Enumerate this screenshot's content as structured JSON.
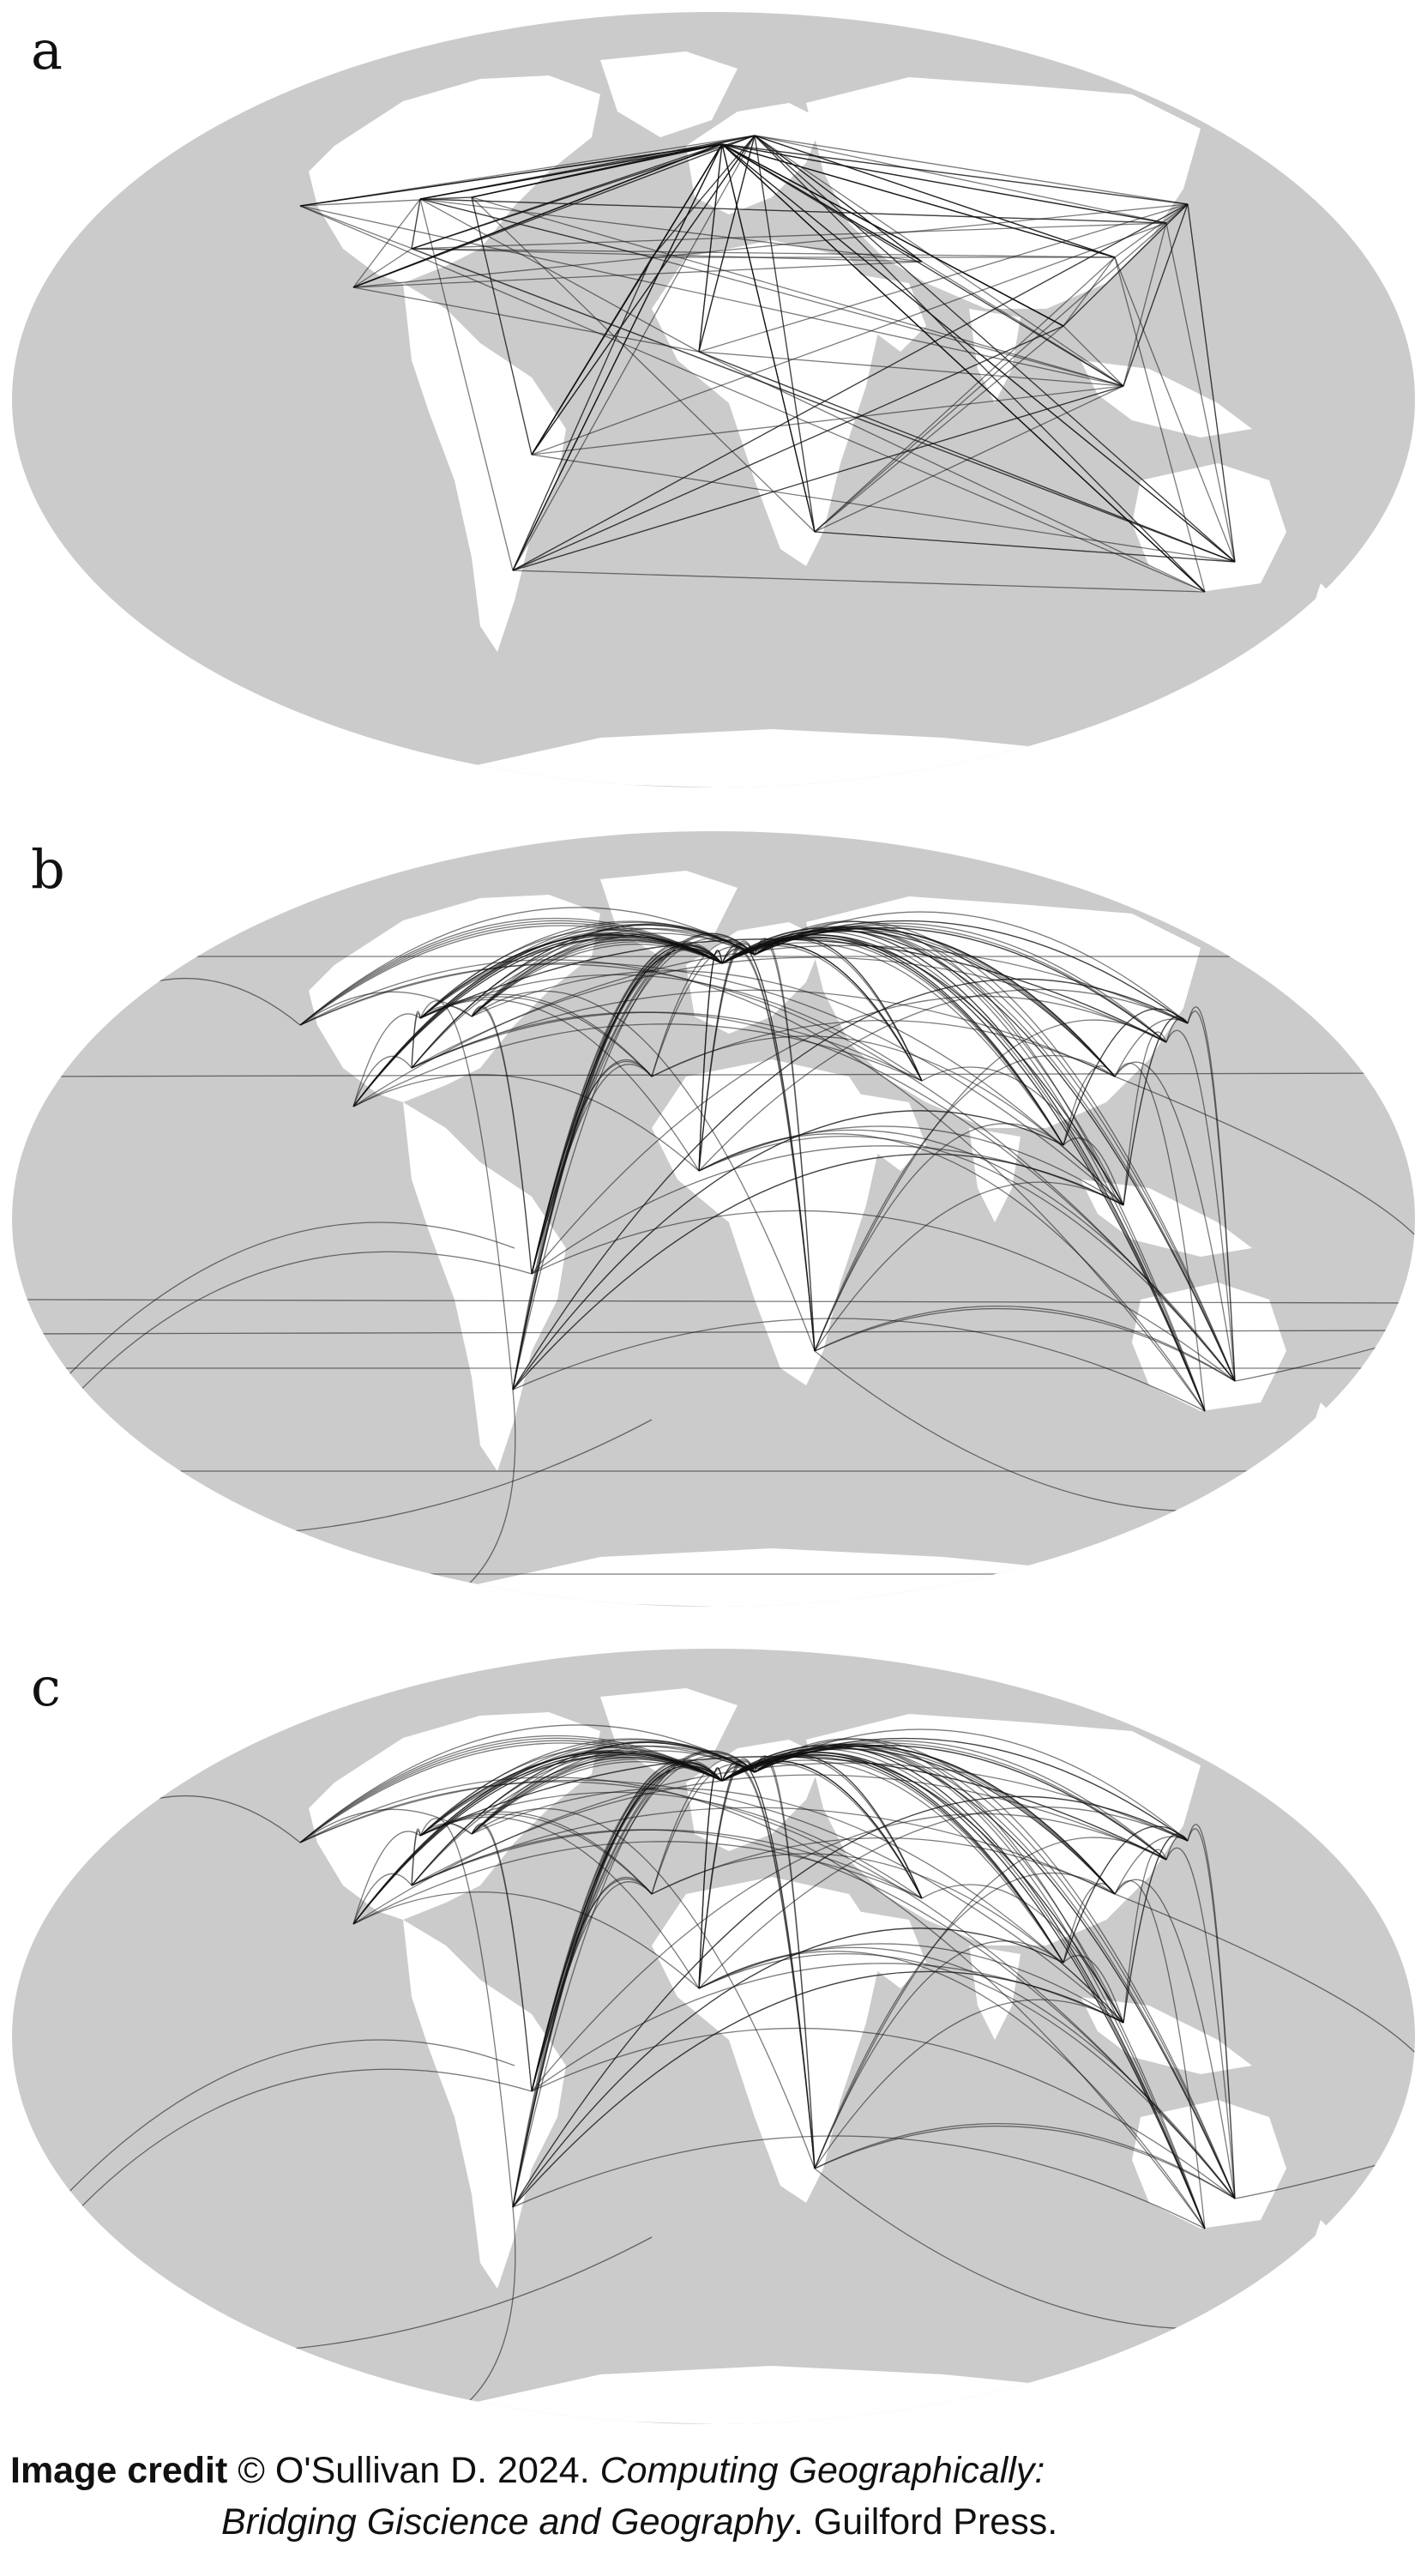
{
  "figure": {
    "panels": [
      {
        "letter": "a",
        "line_style": "straight"
      },
      {
        "letter": "b",
        "line_style": "great-circle"
      },
      {
        "letter": "c",
        "line_style": "great-circle"
      }
    ]
  },
  "credit": {
    "label": "Image credit",
    "author": "© O'Sullivan D. 2024.",
    "book_title_1": "Computing Geographically:",
    "book_title_2": "Bridging Giscience and Geography",
    "publisher": ". Guilford Press."
  },
  "colors": {
    "ocean": "#cbcbcb",
    "land": "#ffffff",
    "flow_lines": "#111111",
    "text": "#111111"
  }
}
